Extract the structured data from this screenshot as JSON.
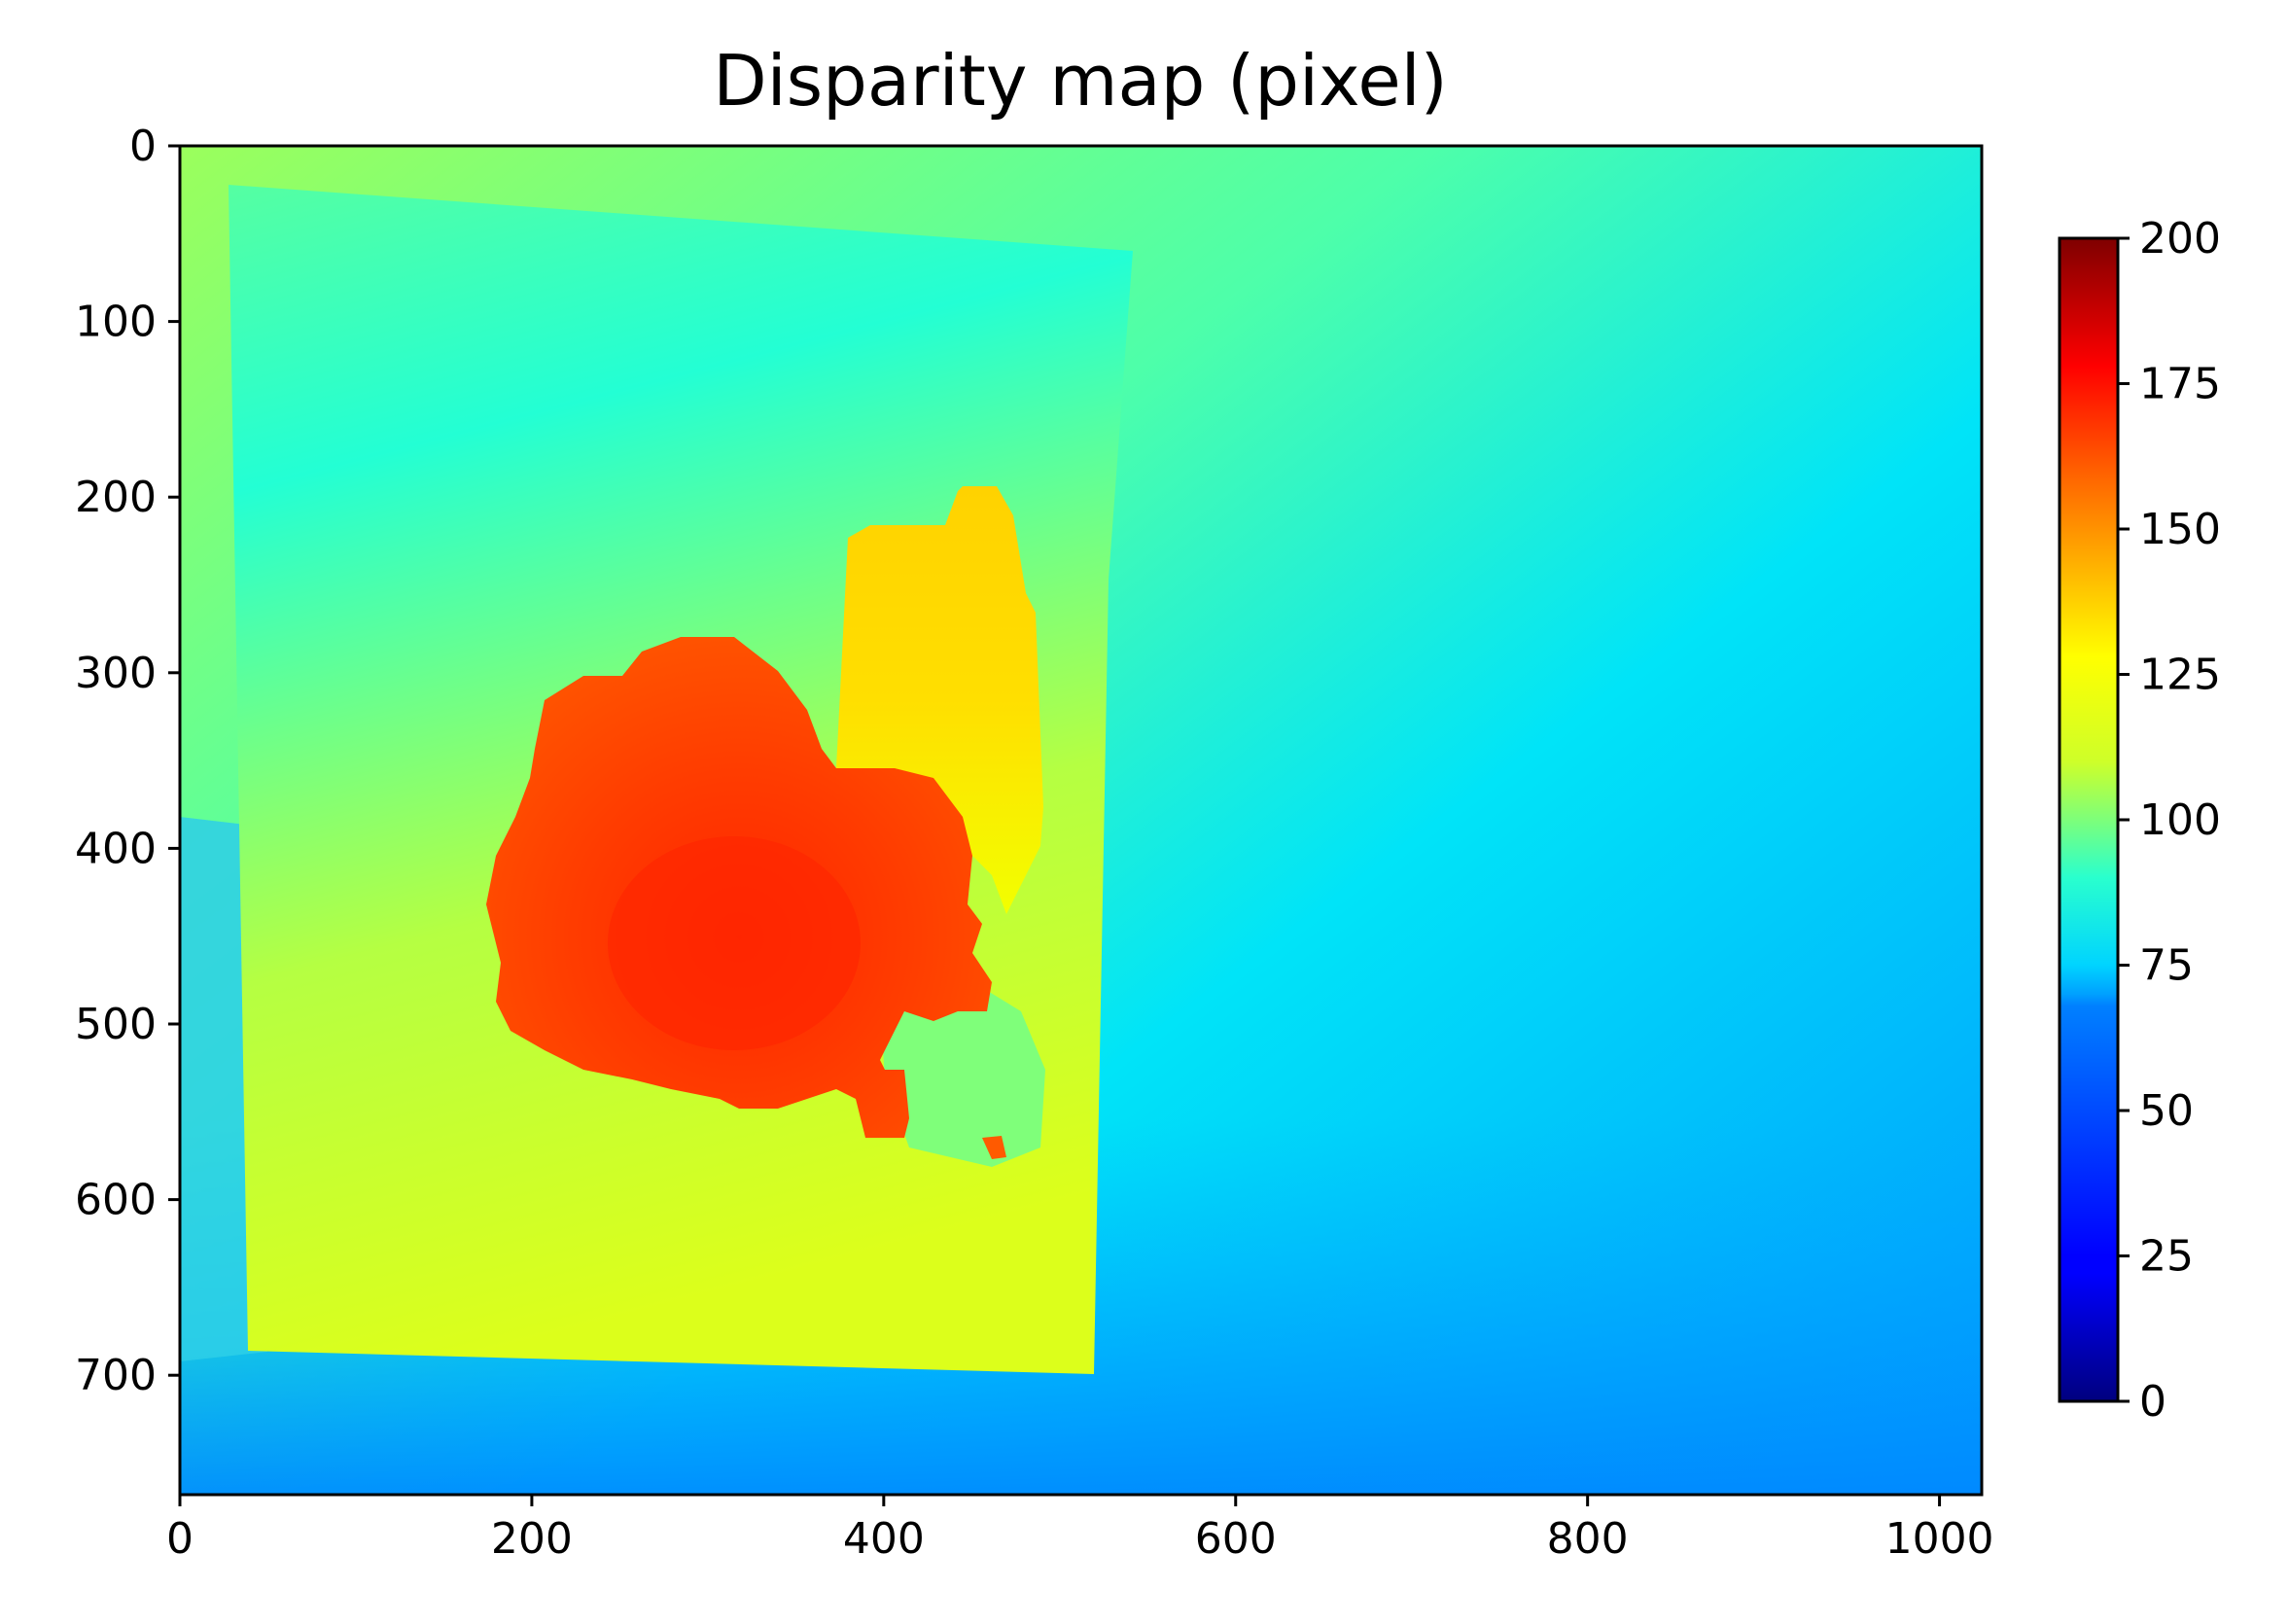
{
  "chart_data": {
    "type": "heatmap",
    "title": "Disparity map (pixel)",
    "xlabel": "",
    "ylabel": "",
    "x_ticks": [
      0,
      200,
      400,
      600,
      800,
      1000
    ],
    "y_ticks": [
      0,
      100,
      200,
      300,
      400,
      500,
      600,
      700
    ],
    "xlim": [
      0,
      1024
    ],
    "ylim": [
      768,
      0
    ],
    "colormap": "jet",
    "colorbar": {
      "range": [
        0,
        200
      ],
      "ticks": [
        0,
        25,
        50,
        75,
        100,
        125,
        150,
        175,
        200
      ]
    },
    "grid": false,
    "regions": [
      {
        "name": "background-upper-left",
        "approx_disparity": 100
      },
      {
        "name": "background-upper-right",
        "approx_disparity": 80
      },
      {
        "name": "background-lower-right",
        "approx_disparity": 55
      },
      {
        "name": "bottom-strip",
        "approx_disparity": 50
      },
      {
        "name": "board-top",
        "approx_disparity": 85
      },
      {
        "name": "board-bottom",
        "approx_disparity": 120
      },
      {
        "name": "yellow-object",
        "approx_disparity": 140
      },
      {
        "name": "red-object",
        "approx_disparity": 170
      },
      {
        "name": "red-object-core",
        "approx_disparity": 176
      }
    ]
  }
}
